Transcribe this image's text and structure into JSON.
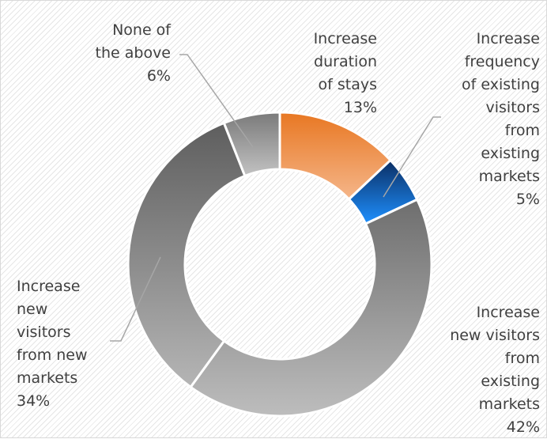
{
  "chart_data": {
    "type": "pie",
    "variant": "donut",
    "legend": "none (labels with leader lines)",
    "slices": [
      {
        "label_lines": [
          "Increase",
          "duration",
          "of stays"
        ],
        "value": 13,
        "value_label": "13%",
        "color": "#ED7D31"
      },
      {
        "label_lines": [
          "Increase",
          "frequency",
          "of existing",
          "visitors",
          "from",
          "existing",
          "markets"
        ],
        "value": 5,
        "value_label": "5%",
        "color": "#0070C0"
      },
      {
        "label_lines": [
          "Increase",
          "new visitors",
          "from",
          "existing",
          "markets"
        ],
        "value": 42,
        "value_label": "42%",
        "color": "#7F7F7F"
      },
      {
        "label_lines": [
          "Increase",
          "new",
          "visitors",
          "from new",
          "markets"
        ],
        "value": 34,
        "value_label": "34%",
        "color": "#7F7F7F"
      },
      {
        "label_lines": [
          "None of",
          "the above"
        ],
        "value": 6,
        "value_label": "6%",
        "color": "#8C8C8C"
      }
    ]
  }
}
